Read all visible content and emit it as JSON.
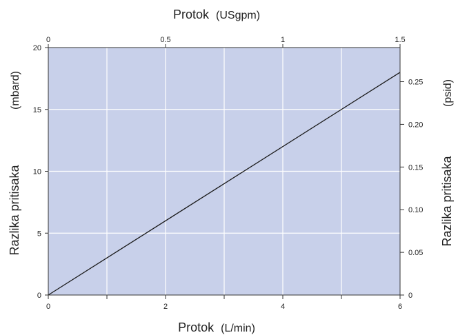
{
  "chart_data": {
    "type": "line",
    "top_axis": {
      "label_bold": "Protok",
      "label_unit": "(USgpm)",
      "range": [
        0,
        1.5
      ],
      "ticks": [
        "0",
        "0.5",
        "1",
        "1.5"
      ],
      "tick_values": [
        0,
        0.5,
        1,
        1.5
      ]
    },
    "bottom_axis": {
      "label_bold": "Protok",
      "label_unit": "(L/min)",
      "range": [
        0,
        6
      ],
      "ticks": [
        "0",
        "2",
        "4",
        "6"
      ],
      "tick_values": [
        0,
        2,
        4,
        6
      ],
      "minor_tick_values": [
        1,
        3,
        5
      ]
    },
    "left_axis": {
      "label_bold": "Razlika pritisaka",
      "label_unit": "(mbard)",
      "range": [
        0,
        20
      ],
      "ticks": [
        "0",
        "5",
        "10",
        "15",
        "20"
      ],
      "tick_values": [
        0,
        5,
        10,
        15,
        20
      ]
    },
    "right_axis": {
      "label_bold": "Razlika pritisaka",
      "label_unit": "(psid)",
      "range": [
        0,
        0.29
      ],
      "ticks": [
        "0",
        "0.05",
        "0.10",
        "0.15",
        "0.20",
        "0.25"
      ],
      "tick_values": [
        0,
        0.05,
        0.1,
        0.15,
        0.2,
        0.25
      ]
    },
    "grid": true,
    "series": [
      {
        "x": [
          0,
          6
        ],
        "y": [
          0,
          18
        ]
      }
    ],
    "colors": {
      "plot_bg": "#c8d0ea",
      "grid": "#ffffff",
      "line": "#1a1a1a",
      "axis": "#333333"
    }
  }
}
